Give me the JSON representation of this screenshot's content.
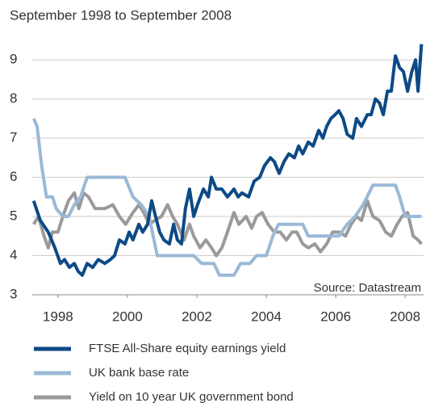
{
  "chart_data": {
    "type": "line",
    "title": "September 1998 to September 2008",
    "annotation": "Source: Datastream",
    "xlim": [
      1997.26,
      2008.53
    ],
    "xticks": [
      1998,
      2000,
      2002,
      2004,
      2006,
      2008
    ],
    "ylim": [
      3,
      9.6
    ],
    "yticks": [
      3,
      4,
      5,
      6,
      7,
      8,
      9
    ],
    "grid": true,
    "legend": "bottom",
    "series": [
      {
        "name": "FTSE All-Share equity earnings yield",
        "color": "#0d4a85",
        "x": [
          1997.3,
          1997.49,
          1997.72,
          1997.91,
          1998.07,
          1998.19,
          1998.33,
          1998.47,
          1998.58,
          1998.7,
          1998.84,
          1999.0,
          1999.16,
          1999.35,
          1999.51,
          1999.63,
          1999.77,
          1999.93,
          2000.05,
          2000.16,
          2000.33,
          2000.44,
          2000.58,
          2000.7,
          2000.81,
          2000.93,
          2001.05,
          2001.21,
          2001.33,
          2001.44,
          2001.56,
          2001.67,
          2001.79,
          2001.91,
          2002.02,
          2002.19,
          2002.33,
          2002.42,
          2002.56,
          2002.72,
          2002.88,
          2003.07,
          2003.19,
          2003.3,
          2003.49,
          2003.65,
          2003.81,
          2003.95,
          2004.12,
          2004.23,
          2004.37,
          2004.51,
          2004.65,
          2004.81,
          2004.93,
          2005.05,
          2005.21,
          2005.35,
          2005.51,
          2005.63,
          2005.74,
          2005.86,
          2005.98,
          2006.09,
          2006.21,
          2006.33,
          2006.49,
          2006.6,
          2006.74,
          2006.91,
          2007.02,
          2007.14,
          2007.26,
          2007.37,
          2007.49,
          2007.6,
          2007.72,
          2007.84,
          2007.95,
          2008.07,
          2008.19,
          2008.3,
          2008.37,
          2008.47
        ],
        "values": [
          5.4,
          4.9,
          4.6,
          4.2,
          3.8,
          3.9,
          3.7,
          3.8,
          3.6,
          3.5,
          3.8,
          3.7,
          3.9,
          3.8,
          3.9,
          4.0,
          4.4,
          4.3,
          4.6,
          4.4,
          4.8,
          4.6,
          4.8,
          5.4,
          5.0,
          4.6,
          4.4,
          4.3,
          4.8,
          4.4,
          4.3,
          5.2,
          5.7,
          5.0,
          5.3,
          5.7,
          5.5,
          6.0,
          5.7,
          5.7,
          5.5,
          5.7,
          5.5,
          5.6,
          5.5,
          5.9,
          6.0,
          6.3,
          6.5,
          6.4,
          6.1,
          6.4,
          6.6,
          6.5,
          6.8,
          6.6,
          6.9,
          6.8,
          7.2,
          7.0,
          7.3,
          7.5,
          7.6,
          7.7,
          7.5,
          7.1,
          7.0,
          7.5,
          7.3,
          7.6,
          7.6,
          8.0,
          7.9,
          7.6,
          8.2,
          8.2,
          9.1,
          8.8,
          8.7,
          8.2,
          8.7,
          9.0,
          8.2,
          9.4
        ]
      },
      {
        "name": "UK bank base rate",
        "color": "#9ab9d6",
        "x": [
          1997.3,
          1997.4,
          1997.53,
          1997.67,
          1997.84,
          1997.95,
          1998.14,
          1998.3,
          1998.47,
          1998.65,
          1998.84,
          1999.35,
          1999.93,
          2000.16,
          2000.4,
          2000.63,
          2000.74,
          2000.86,
          2001.33,
          2001.91,
          2002.14,
          2002.49,
          2002.65,
          2003.07,
          2003.26,
          2003.53,
          2003.72,
          2004.0,
          2004.19,
          2004.35,
          2004.81,
          2005.05,
          2005.21,
          2006.09,
          2006.33,
          2006.56,
          2006.79,
          2007.07,
          2007.72,
          2007.84,
          2008.0,
          2008.47
        ],
        "values": [
          7.5,
          7.3,
          6.3,
          5.5,
          5.5,
          5.2,
          5.0,
          5.0,
          5.3,
          5.5,
          6.0,
          6.0,
          6.0,
          5.5,
          5.3,
          5.0,
          4.5,
          4.0,
          4.0,
          4.0,
          3.8,
          3.8,
          3.5,
          3.5,
          3.8,
          3.8,
          4.0,
          4.0,
          4.5,
          4.8,
          4.8,
          4.8,
          4.5,
          4.5,
          4.8,
          5.0,
          5.3,
          5.8,
          5.8,
          5.5,
          5.0,
          5.0
        ]
      },
      {
        "name": "Yield on 10 year UK government bond",
        "color": "#9a9a9a",
        "x": [
          1997.3,
          1997.44,
          1997.6,
          1997.72,
          1997.84,
          1998.0,
          1998.14,
          1998.3,
          1998.47,
          1998.6,
          1998.74,
          1998.88,
          1999.07,
          1999.35,
          1999.58,
          1999.77,
          1999.95,
          2000.16,
          2000.33,
          2000.47,
          2000.63,
          2000.79,
          2000.98,
          2001.16,
          2001.3,
          2001.44,
          2001.63,
          2001.79,
          2001.91,
          2002.09,
          2002.26,
          2002.42,
          2002.56,
          2002.72,
          2002.88,
          2003.07,
          2003.21,
          2003.42,
          2003.58,
          2003.72,
          2003.88,
          2004.05,
          2004.23,
          2004.4,
          2004.58,
          2004.74,
          2004.88,
          2005.05,
          2005.21,
          2005.4,
          2005.56,
          2005.74,
          2005.91,
          2006.09,
          2006.28,
          2006.44,
          2006.6,
          2006.74,
          2006.91,
          2007.07,
          2007.26,
          2007.44,
          2007.6,
          2007.77,
          2007.91,
          2008.07,
          2008.23,
          2008.37,
          2008.47
        ],
        "values": [
          4.8,
          5.0,
          4.5,
          4.2,
          4.6,
          4.6,
          5.0,
          5.4,
          5.6,
          5.2,
          5.6,
          5.5,
          5.2,
          5.2,
          5.3,
          5.0,
          4.8,
          5.1,
          5.3,
          5.1,
          4.8,
          4.9,
          5.0,
          5.3,
          5.0,
          4.8,
          4.4,
          4.8,
          4.5,
          4.2,
          4.4,
          4.2,
          4.0,
          4.2,
          4.6,
          5.1,
          4.8,
          5.0,
          4.7,
          5.0,
          5.1,
          4.8,
          4.6,
          4.6,
          4.4,
          4.6,
          4.6,
          4.3,
          4.2,
          4.3,
          4.1,
          4.3,
          4.6,
          4.6,
          4.5,
          4.8,
          5.0,
          4.9,
          5.4,
          5.0,
          4.9,
          4.6,
          4.5,
          4.8,
          5.0,
          5.1,
          4.5,
          4.4,
          4.3
        ]
      }
    ]
  }
}
